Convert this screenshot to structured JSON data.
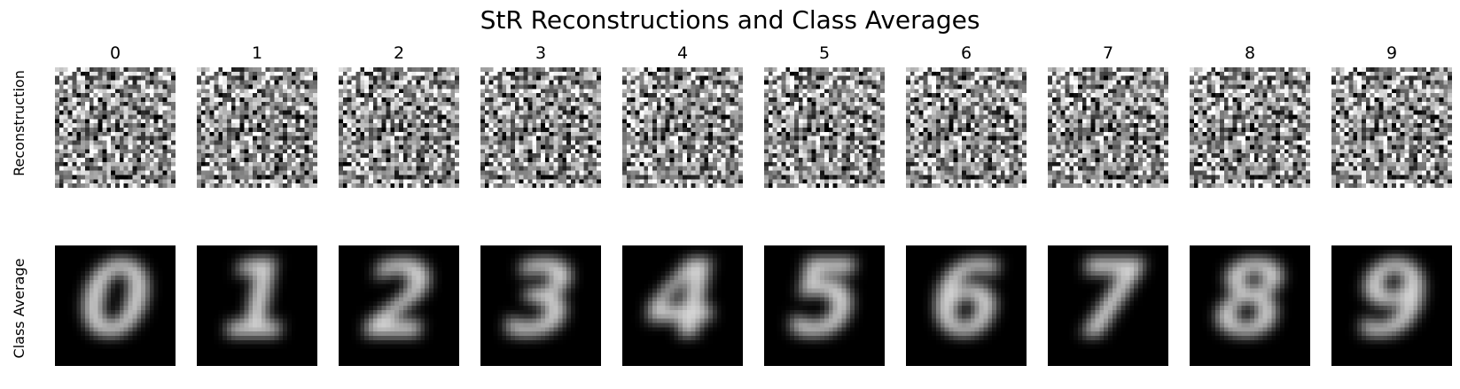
{
  "figure": {
    "title": "StR Reconstructions and Class Averages",
    "row_labels": [
      "Reconstruction",
      "Class Average"
    ],
    "columns": [
      "0",
      "1",
      "2",
      "3",
      "4",
      "5",
      "6",
      "7",
      "8",
      "9"
    ]
  },
  "colormap": "gray"
}
